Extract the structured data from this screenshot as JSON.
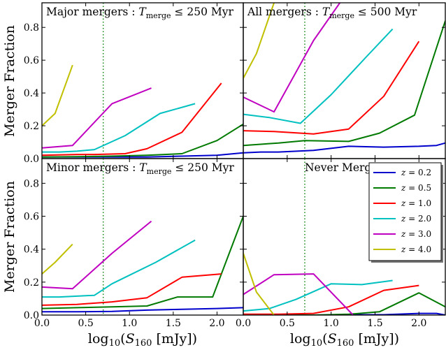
{
  "chart_data": [
    {
      "type": "line",
      "title": "Major mergers : T_merge ≤ 250 Myr",
      "ylabel": "Merger Fraction",
      "xlabel": "",
      "xlim": [
        0.0,
        2.3
      ],
      "ylim": [
        0.0,
        0.95
      ],
      "vline_x": 0.7,
      "series": [
        {
          "name": "z = 0.2",
          "color": "#0000cc",
          "x": [
            0.0,
            0.4,
            0.8,
            1.2,
            1.6,
            2.0,
            2.3
          ],
          "y": [
            0.01,
            0.01,
            0.01,
            0.01,
            0.015,
            0.02,
            0.035
          ]
        },
        {
          "name": "z = 0.5",
          "color": "#007a00",
          "x": [
            0.0,
            0.4,
            0.8,
            1.2,
            1.6,
            2.0,
            2.3
          ],
          "y": [
            0.01,
            0.012,
            0.015,
            0.02,
            0.03,
            0.11,
            0.21
          ]
        },
        {
          "name": "z = 1.0",
          "color": "#ff0000",
          "x": [
            0.0,
            0.4,
            0.6,
            0.95,
            1.2,
            1.6,
            2.05
          ],
          "y": [
            0.02,
            0.025,
            0.025,
            0.03,
            0.06,
            0.16,
            0.46
          ]
        },
        {
          "name": "z = 2.0",
          "color": "#00c0c0",
          "x": [
            0.0,
            0.2,
            0.4,
            0.6,
            0.95,
            1.35,
            1.75
          ],
          "y": [
            0.04,
            0.04,
            0.045,
            0.055,
            0.14,
            0.275,
            0.335
          ]
        },
        {
          "name": "z = 3.0",
          "color": "#c000c0",
          "x": [
            0.0,
            0.35,
            0.8,
            1.25
          ],
          "y": [
            0.065,
            0.08,
            0.335,
            0.43
          ]
        },
        {
          "name": "z = 4.0",
          "color": "#c0c000",
          "x": [
            0.0,
            0.15,
            0.35
          ],
          "y": [
            0.2,
            0.275,
            0.57
          ]
        }
      ]
    },
    {
      "type": "line",
      "title": "All mergers : T_merge ≤ 500 Myr",
      "ylabel": "",
      "xlabel": "",
      "xlim": [
        0.0,
        2.3
      ],
      "ylim": [
        0.0,
        0.95
      ],
      "vline_x": 0.7,
      "series": [
        {
          "name": "z = 0.2",
          "color": "#0000cc",
          "x": [
            0.0,
            0.2,
            0.4,
            0.8,
            1.2,
            1.6,
            2.0,
            2.2,
            2.3
          ],
          "y": [
            0.035,
            0.04,
            0.04,
            0.05,
            0.075,
            0.07,
            0.075,
            0.08,
            0.095
          ]
        },
        {
          "name": "z = 0.5",
          "color": "#007a00",
          "x": [
            0.0,
            0.4,
            0.7,
            1.2,
            1.55,
            1.95,
            2.3
          ],
          "y": [
            0.08,
            0.095,
            0.11,
            0.105,
            0.155,
            0.265,
            0.84
          ]
        },
        {
          "name": "z = 1.0",
          "color": "#ff0000",
          "x": [
            0.0,
            0.35,
            0.8,
            1.2,
            1.6,
            2.0
          ],
          "y": [
            0.17,
            0.165,
            0.15,
            0.18,
            0.38,
            0.715
          ]
        },
        {
          "name": "z = 2.0",
          "color": "#00c0c0",
          "x": [
            0.0,
            0.3,
            0.65,
            1.0,
            1.4,
            1.7
          ],
          "y": [
            0.27,
            0.25,
            0.215,
            0.39,
            0.62,
            0.79
          ]
        },
        {
          "name": "z = 3.0",
          "color": "#c000c0",
          "x": [
            0.0,
            0.35,
            0.8,
            1.1
          ],
          "y": [
            0.375,
            0.285,
            0.72,
            0.95
          ]
        },
        {
          "name": "z = 4.0",
          "color": "#c0c000",
          "x": [
            0.0,
            0.15,
            0.35
          ],
          "y": [
            0.49,
            0.64,
            0.95
          ]
        }
      ]
    },
    {
      "type": "line",
      "title": "Minor mergers : T_merge ≤ 250 Myr",
      "ylabel": "Merger Fraction",
      "xlabel": "log10(S160 [mJy])",
      "xlim": [
        0.0,
        2.3
      ],
      "ylim": [
        0.0,
        0.95
      ],
      "vline_x": 0.7,
      "series": [
        {
          "name": "z = 0.2",
          "color": "#0000cc",
          "x": [
            0.0,
            0.4,
            0.8,
            1.2,
            1.6,
            2.0,
            2.3
          ],
          "y": [
            0.02,
            0.02,
            0.022,
            0.03,
            0.035,
            0.04,
            0.045
          ]
        },
        {
          "name": "z = 0.5",
          "color": "#007a00",
          "x": [
            0.0,
            0.4,
            0.8,
            1.2,
            1.55,
            1.95,
            2.3
          ],
          "y": [
            0.04,
            0.045,
            0.05,
            0.055,
            0.11,
            0.11,
            0.6
          ]
        },
        {
          "name": "z = 1.0",
          "color": "#ff0000",
          "x": [
            0.0,
            0.4,
            0.8,
            1.2,
            1.6,
            2.05
          ],
          "y": [
            0.06,
            0.065,
            0.08,
            0.105,
            0.23,
            0.25
          ]
        },
        {
          "name": "z = 2.0",
          "color": "#00c0c0",
          "x": [
            0.0,
            0.2,
            0.6,
            0.8,
            1.3,
            1.75
          ],
          "y": [
            0.11,
            0.11,
            0.12,
            0.19,
            0.32,
            0.455
          ]
        },
        {
          "name": "z = 3.0",
          "color": "#c000c0",
          "x": [
            0.0,
            0.35,
            0.8,
            1.25
          ],
          "y": [
            0.17,
            0.16,
            0.375,
            0.57
          ]
        },
        {
          "name": "z = 4.0",
          "color": "#c0c000",
          "x": [
            0.0,
            0.15,
            0.35
          ],
          "y": [
            0.25,
            0.32,
            0.43
          ]
        }
      ]
    },
    {
      "type": "line",
      "title": "Never Merged",
      "ylabel": "",
      "xlabel": "log10(S160 [mJy])",
      "xlim": [
        0.0,
        2.3
      ],
      "ylim": [
        0.0,
        0.95
      ],
      "vline_x": 0.7,
      "legend_position": "top-right",
      "series": [
        {
          "name": "z = 0.2",
          "color": "#0000cc",
          "x": [
            0.0,
            0.4,
            0.8,
            1.2,
            1.6,
            2.0,
            2.2,
            2.3
          ],
          "y": [
            0.0,
            0.0,
            0.0,
            0.002,
            0.002,
            0.01,
            0.01,
            0.0
          ]
        },
        {
          "name": "z = 0.5",
          "color": "#007a00",
          "x": [
            0.0,
            0.4,
            0.8,
            1.2,
            1.55,
            2.0,
            2.3
          ],
          "y": [
            0.0,
            0.0,
            0.0,
            0.005,
            0.02,
            0.135,
            0.05
          ]
        },
        {
          "name": "z = 1.0",
          "color": "#ff0000",
          "x": [
            0.0,
            0.4,
            0.8,
            1.2,
            1.6,
            2.0
          ],
          "y": [
            0.005,
            0.005,
            0.01,
            0.05,
            0.15,
            0.18
          ]
        },
        {
          "name": "z = 2.0",
          "color": "#00c0c0",
          "x": [
            0.0,
            0.3,
            0.6,
            1.0,
            1.35,
            1.7
          ],
          "y": [
            0.025,
            0.04,
            0.095,
            0.19,
            0.185,
            0.21
          ]
        },
        {
          "name": "z = 3.0",
          "color": "#c000c0",
          "x": [
            0.0,
            0.35,
            0.8,
            1.25
          ],
          "y": [
            0.125,
            0.245,
            0.25,
            0.0
          ]
        },
        {
          "name": "z = 4.0",
          "color": "#c0c000",
          "x": [
            0.0,
            0.15,
            0.35
          ],
          "y": [
            0.375,
            0.14,
            0.0
          ]
        }
      ]
    }
  ],
  "axes": {
    "x_ticks": [
      "0.0",
      "0.5",
      "1.0",
      "1.5",
      "2.0"
    ],
    "x_tick_values": [
      0.0,
      0.5,
      1.0,
      1.5,
      2.0
    ],
    "y_ticks": [
      "0.0",
      "0.2",
      "0.4",
      "0.6",
      "0.8"
    ],
    "y_tick_values": [
      0.0,
      0.2,
      0.4,
      0.6,
      0.8
    ]
  },
  "legend": {
    "entries": [
      "z = 0.2",
      "z = 0.5",
      "z = 1.0",
      "z = 2.0",
      "z = 3.0",
      "z = 4.0"
    ],
    "colors": [
      "#0000cc",
      "#007a00",
      "#ff0000",
      "#00c0c0",
      "#c000c0",
      "#c0c000"
    ]
  }
}
